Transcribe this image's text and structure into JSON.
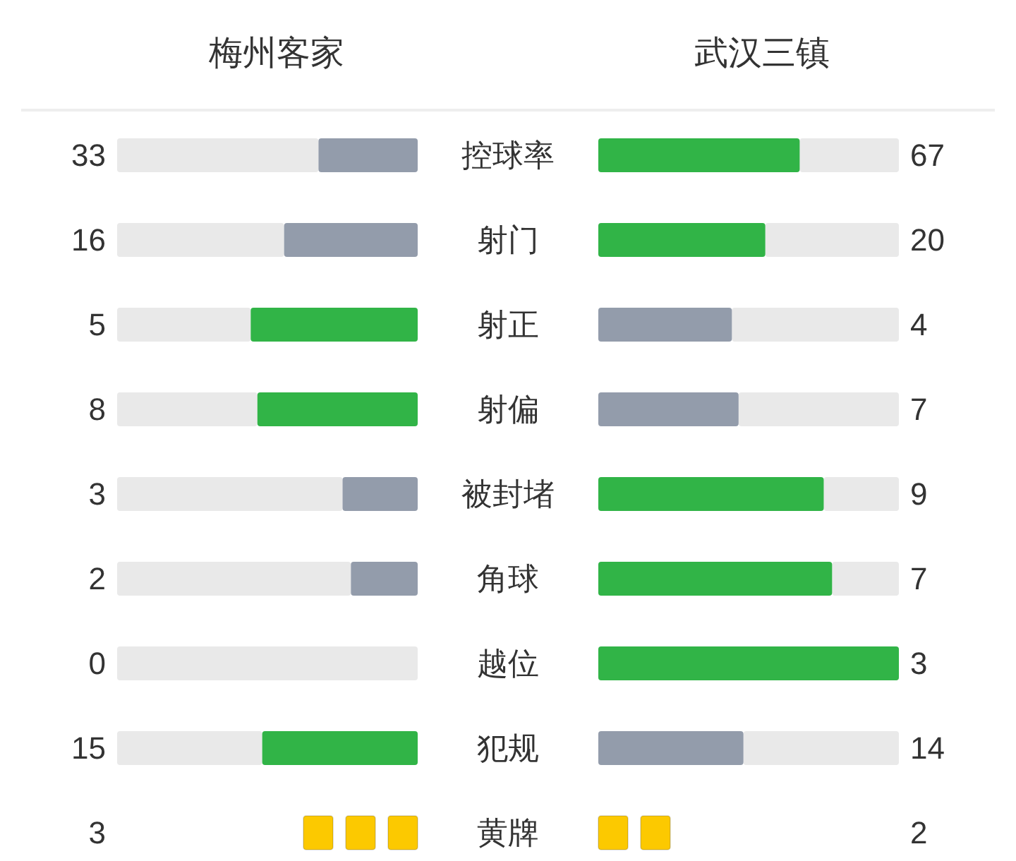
{
  "chart_data": [
    {
      "type": "other",
      "categories": [
        "控球率",
        "射门",
        "射正",
        "射偏",
        "被封堵",
        "角球",
        "越位",
        "犯规"
      ],
      "series": [
        {
          "name": "梅州客家",
          "values": [
            33,
            16,
            5,
            8,
            3,
            2,
            0,
            15
          ],
          "colors": [
            "#939cab",
            "#939cab",
            "#31b447",
            "#31b447",
            "#939cab",
            "#939cab",
            null,
            "#31b447"
          ]
        },
        {
          "name": "武汉三镇",
          "values": [
            67,
            20,
            4,
            7,
            9,
            7,
            3,
            14
          ],
          "colors": [
            "#31b447",
            "#31b447",
            "#939cab",
            "#939cab",
            "#31b447",
            "#31b447",
            "#31b447",
            "#939cab"
          ]
        }
      ],
      "data_labels": true
    },
    {
      "type": "other",
      "categories": [
        "黄牌"
      ],
      "series": [
        {
          "values": [
            3
          ],
          "color": "#fcc900"
        },
        {
          "values": [
            2
          ],
          "color": "#fcc900"
        }
      ],
      "data_labels": true
    }
  ]
}
